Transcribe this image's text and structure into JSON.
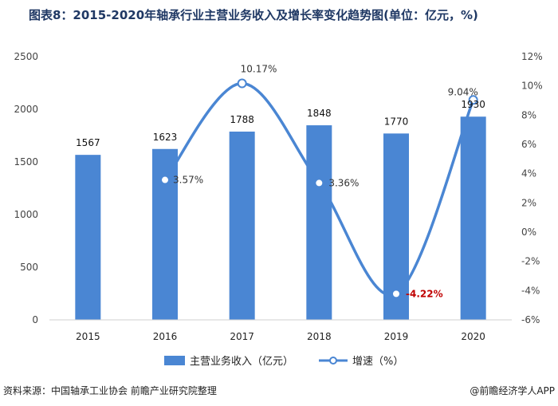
{
  "header": {
    "title": "图表8：2015-2020年轴承行业主营业务收入及增长率变化趋势图(单位：亿元，%)"
  },
  "footer": {
    "source": "资料来源：中国轴承工业协会 前瞻产业研究院整理",
    "brand": "@前瞻经济学人APP"
  },
  "chart_data": {
    "type": "bar",
    "title": "图表8：2015-2020年轴承行业主营业务收入及增长率变化趋势图(单位：亿元，%)",
    "categories": [
      "2015",
      "2016",
      "2017",
      "2018",
      "2019",
      "2020"
    ],
    "series": [
      {
        "name": "主营业务收入（亿元）",
        "type": "bar",
        "axis": "left",
        "values": [
          1567,
          1623,
          1788,
          1848,
          1770,
          1930
        ],
        "labels": [
          "1567",
          "1623",
          "1788",
          "1848",
          "1770",
          "1930"
        ]
      },
      {
        "name": "增速（%）",
        "type": "line",
        "axis": "right",
        "values": [
          null,
          3.57,
          10.17,
          3.36,
          -4.22,
          9.04
        ],
        "labels": [
          "",
          "3.57%",
          "10.17%",
          "3.36%",
          "-4.22%",
          "9.04%"
        ]
      }
    ],
    "ylim_left": [
      0,
      2500
    ],
    "yticks_left": [
      "0",
      "500",
      "1000",
      "1500",
      "2000",
      "2500"
    ],
    "ylim_right": [
      -6,
      12
    ],
    "yticks_right": [
      "-6%",
      "-4%",
      "-2%",
      "0%",
      "2%",
      "4%",
      "6%",
      "8%",
      "10%",
      "12%"
    ],
    "legend": [
      "主营业务收入（亿元）",
      "增速（%）"
    ],
    "legend_position": "bottom",
    "colors": {
      "bar": "#4a86d3",
      "line": "#4a86d3",
      "negative_label": "#c00000"
    }
  }
}
